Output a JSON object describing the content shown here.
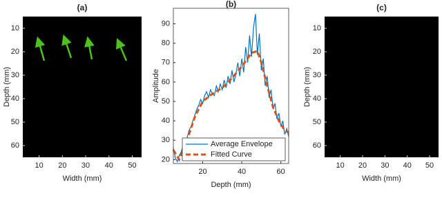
{
  "chart_data": [
    {
      "type": "image",
      "title": "(a)",
      "xlabel": "Width (mm)",
      "ylabel": "Depth (mm)",
      "xlim": [
        3,
        54
      ],
      "xticks": [
        10,
        20,
        30,
        40,
        50
      ],
      "ylim": [
        5,
        65
      ],
      "yticks": [
        10,
        20,
        30,
        40,
        50,
        60
      ],
      "y_reversed": true
    },
    {
      "type": "line",
      "title": "(b)",
      "xlabel": "Depth (mm)",
      "ylabel": "Amplitude",
      "xlim": [
        5,
        64
      ],
      "xticks": [
        20,
        40,
        60
      ],
      "ylim": [
        18,
        98
      ],
      "yticks": [
        20,
        30,
        40,
        50,
        60,
        70,
        80,
        90
      ],
      "legend": "lower left",
      "series": [
        {
          "name": "Average Envelope",
          "color": "#0072bd",
          "style": "solid",
          "x": [
            5,
            6,
            7,
            8,
            9,
            10,
            11,
            12,
            13,
            14,
            15,
            16,
            17,
            18,
            19,
            20,
            21,
            22,
            23,
            24,
            25,
            26,
            27,
            28,
            29,
            30,
            31,
            32,
            33,
            34,
            35,
            36,
            37,
            38,
            39,
            40,
            41,
            42,
            43,
            44,
            45,
            46,
            47,
            48,
            49,
            50,
            51,
            52,
            53,
            54,
            55,
            56,
            57,
            58,
            59,
            60,
            61,
            62,
            63,
            64
          ],
          "values": [
            26,
            21,
            19,
            22,
            24,
            27,
            25,
            31,
            35,
            37,
            40,
            43,
            46,
            48,
            51,
            49,
            53,
            55,
            52,
            56,
            54,
            53,
            58,
            55,
            59,
            56,
            61,
            57,
            63,
            59,
            66,
            60,
            64,
            70,
            63,
            72,
            65,
            78,
            70,
            84,
            73,
            88,
            95,
            74,
            85,
            66,
            72,
            58,
            63,
            52,
            56,
            46,
            49,
            41,
            44,
            37,
            40,
            33,
            36,
            32
          ]
        },
        {
          "name": "Fitted Curve",
          "color": "#d95319",
          "style": "dashed",
          "x": [
            5,
            8,
            12,
            16,
            20,
            25,
            30,
            35,
            40,
            45,
            48,
            50,
            53,
            56,
            59,
            62,
            64
          ],
          "values": [
            25,
            20,
            30,
            42,
            50,
            54,
            57,
            62,
            68,
            75,
            76,
            70,
            58,
            47,
            40,
            35,
            34
          ]
        }
      ]
    },
    {
      "type": "image",
      "title": "(c)",
      "xlabel": "Width (mm)",
      "ylabel": "Depth (mm)",
      "xlim": [
        3,
        54
      ],
      "xticks": [
        10,
        20,
        30,
        40,
        50
      ],
      "ylim": [
        5,
        65
      ],
      "yticks": [
        10,
        20,
        30,
        40,
        50,
        60
      ],
      "y_reversed": true
    }
  ]
}
